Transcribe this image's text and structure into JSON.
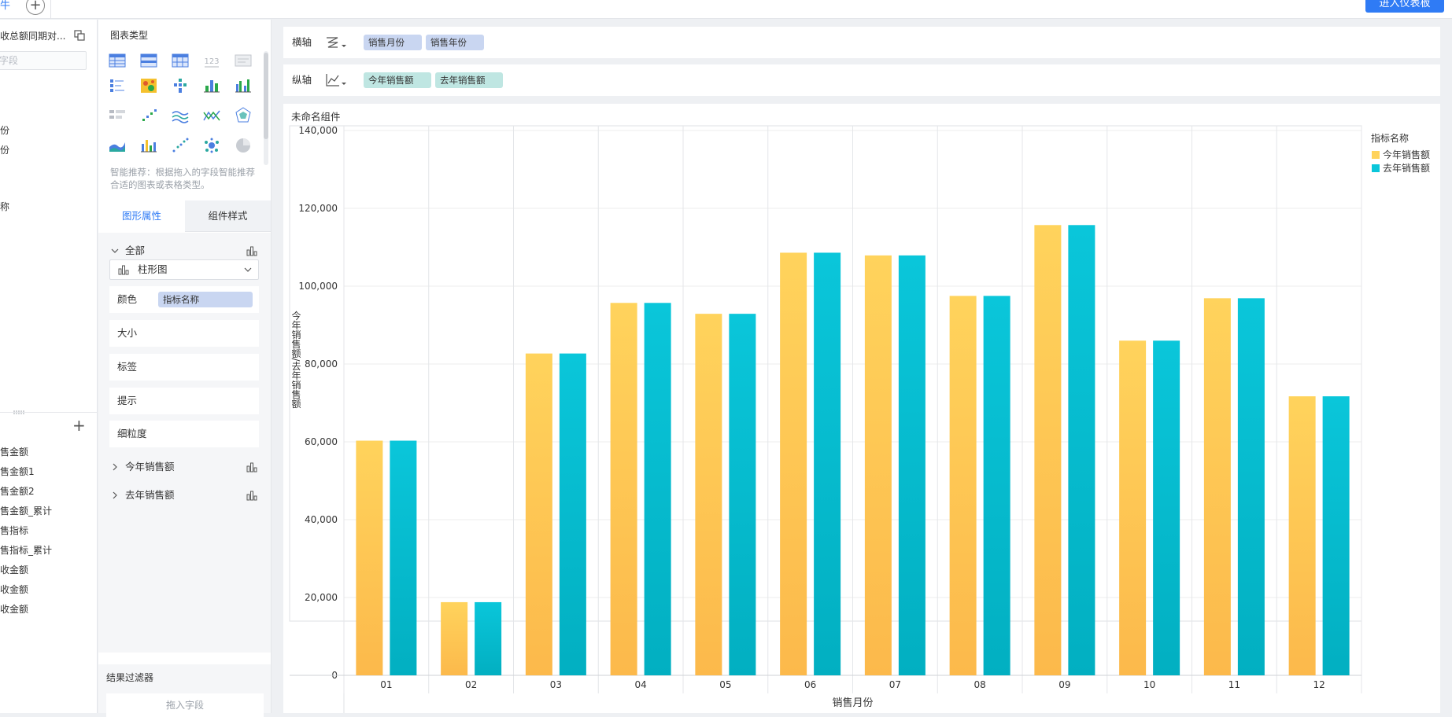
{
  "top_bar": {
    "tab_fragment": "牛",
    "add_tab_symbol": "+",
    "enter_dashboard": "进入仪表板"
  },
  "left_panel": {
    "dataset_title": "收总额同期对...",
    "search_placeholder": "字段",
    "dimensions": [
      "份",
      "份",
      "称"
    ],
    "measures": [
      "售金额",
      "售金额1",
      "售金额2",
      "售金额_累计",
      "售指标",
      "售指标_累计",
      "收金额",
      "收金额",
      "收金额"
    ],
    "add_symbol": "+"
  },
  "type_panel": {
    "title": "图表类型",
    "hint": "智能推荐：根据拖入的字段智能推荐合适的图表或表格类型。",
    "icons": [
      "detail-table-icon",
      "group-table-icon",
      "cross-table-icon",
      "kpi-card-icon",
      "text-table-icon",
      "chart-table-icon",
      "heatmap-icon",
      "stacked-dot-icon",
      "bar-chart-icon",
      "multi-bar-chart-icon",
      "funnel-icon",
      "scatter-step-icon",
      "line-chart-icon",
      "cross-line-icon",
      "radar-icon",
      "area-chart-icon",
      "combo-bar-icon",
      "scatter-icon",
      "bubble-icon",
      "pie-chart-icon"
    ]
  },
  "props": {
    "tab_shape": "图形属性",
    "tab_style": "组件样式",
    "all_label": "全部",
    "chart_type_selected": "柱形图",
    "color_label": "颜色",
    "color_field": "指标名称",
    "size_label": "大小",
    "label_label": "标签",
    "tooltip_label": "提示",
    "granularity_label": "细粒度",
    "series": [
      "今年销售额",
      "去年销售额"
    ]
  },
  "filter": {
    "title": "结果过滤器",
    "drop_hint": "拖入字段"
  },
  "shelves": {
    "x_label": "横轴",
    "x_fields": [
      "销售月份",
      "销售年份"
    ],
    "y_label": "纵轴",
    "y_fields": [
      "今年销售额",
      "去年销售额"
    ]
  },
  "chart_card": {
    "title": "未命名组件"
  },
  "colors": {
    "accent": "#2f7bf5",
    "series_this_year_top": "#ffd35c",
    "series_this_year_bottom": "#fcb94b",
    "series_last_year_top": "#0ac6da",
    "series_last_year_bottom": "#02afc1"
  },
  "chart_data": {
    "type": "bar",
    "title": "",
    "xlabel": "销售月份",
    "ylabel": "今年销售额/去年销售额",
    "categories": [
      "01",
      "02",
      "03",
      "04",
      "05",
      "06",
      "07",
      "08",
      "09",
      "10",
      "11",
      "12"
    ],
    "ylim": [
      0,
      140000
    ],
    "yticks": [
      0,
      20000,
      40000,
      60000,
      80000,
      100000,
      120000,
      140000
    ],
    "ytick_labels": [
      "0",
      "20,000",
      "40,000",
      "60,000",
      "80,000",
      "100,000",
      "120,000",
      "140,000"
    ],
    "grid": true,
    "legend_title": "指标名称",
    "legend_position": "top-right",
    "series": [
      {
        "name": "今年销售额",
        "values": [
          60300,
          18800,
          82700,
          95700,
          92900,
          108600,
          107900,
          97500,
          115700,
          86000,
          96900,
          71700
        ]
      },
      {
        "name": "去年销售额",
        "values": [
          60300,
          18800,
          82700,
          95700,
          92900,
          108600,
          107900,
          97500,
          115700,
          86000,
          96900,
          71700
        ]
      }
    ]
  }
}
